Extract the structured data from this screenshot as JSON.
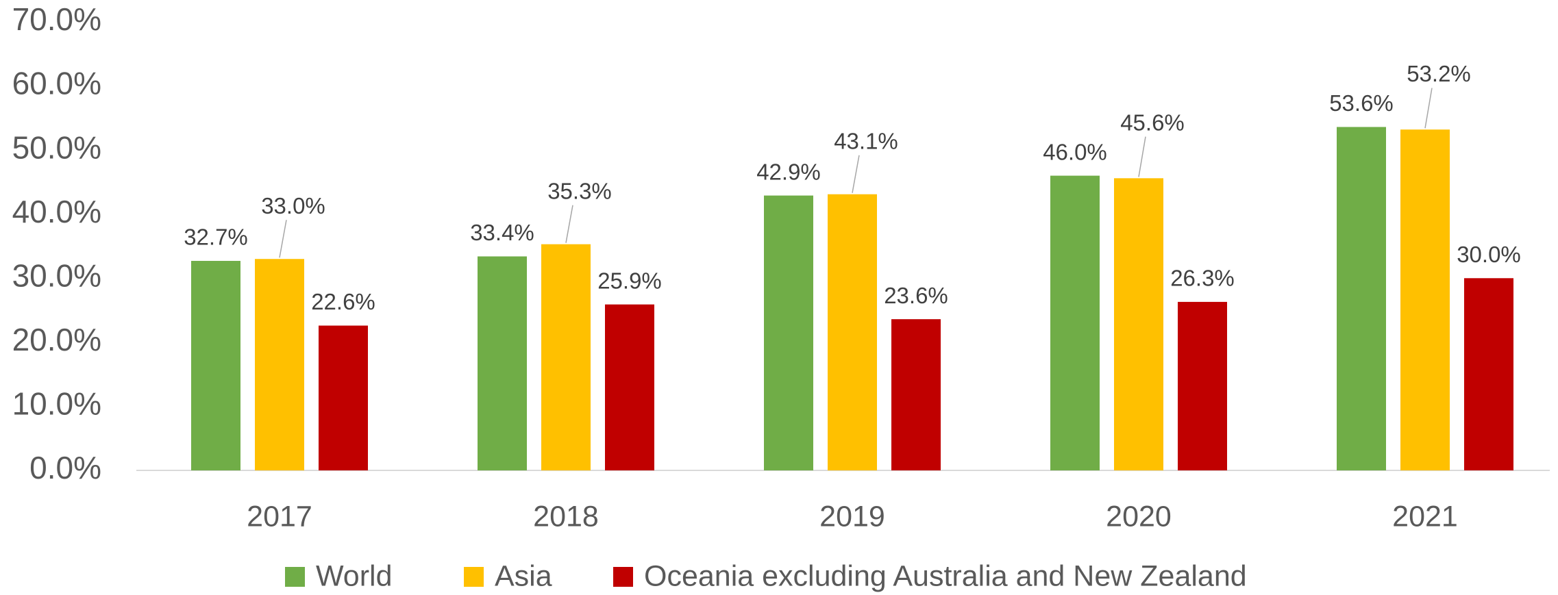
{
  "chart_data": {
    "type": "bar",
    "categories": [
      "2017",
      "2018",
      "2019",
      "2020",
      "2021"
    ],
    "series": [
      {
        "name": "World",
        "color": "#70ad47",
        "values": [
          32.7,
          33.4,
          42.9,
          46.0,
          53.6
        ],
        "value_labels": [
          "32.7%",
          "33.4%",
          "42.9%",
          "46.0%",
          "53.6%"
        ]
      },
      {
        "name": "Asia",
        "color": "#ffc000",
        "values": [
          33.0,
          35.3,
          43.1,
          45.6,
          53.2
        ],
        "value_labels": [
          "33.0%",
          "35.3%",
          "43.1%",
          "45.6%",
          "53.2%"
        ]
      },
      {
        "name": "Oceania excluding Australia and New Zealand",
        "color": "#c00000",
        "values": [
          22.6,
          25.9,
          23.6,
          26.3,
          30.0
        ],
        "value_labels": [
          "22.6%",
          "25.9%",
          "23.6%",
          "26.3%",
          "30.0%"
        ]
      }
    ],
    "ylim": [
      0,
      70
    ],
    "yticks": [
      {
        "value": 0,
        "label": "0.0%"
      },
      {
        "value": 10,
        "label": "10.0%"
      },
      {
        "value": 20,
        "label": "20.0%"
      },
      {
        "value": 30,
        "label": "30.0%"
      },
      {
        "value": 40,
        "label": "40.0%"
      },
      {
        "value": 50,
        "label": "50.0%"
      },
      {
        "value": 60,
        "label": "60.0%"
      },
      {
        "value": 70,
        "label": "70.0%"
      }
    ],
    "legend": "bottom"
  }
}
